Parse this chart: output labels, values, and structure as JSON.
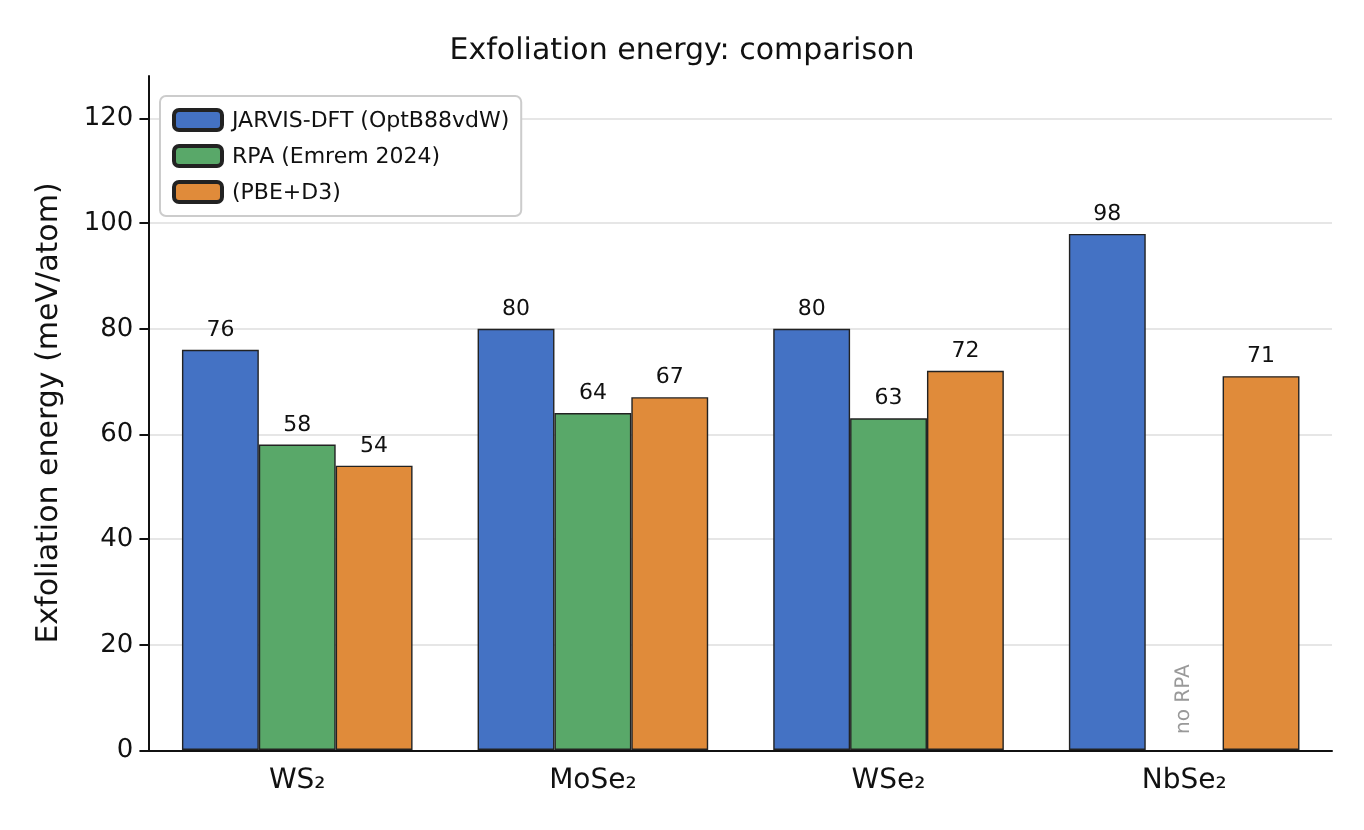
{
  "chart_data": {
    "type": "bar",
    "title": "Exfoliation energy: comparison",
    "ylabel": "Exfoliation energy (meV/atom)",
    "categories": [
      "WS₂",
      "MoSe₂",
      "WSe₂",
      "NbSe₂"
    ],
    "series": [
      {
        "name": "JARVIS-DFT (OptB88vdW)",
        "color": "#4472c4",
        "values": [
          76,
          80,
          80,
          98
        ]
      },
      {
        "name": "RPA (Emrem 2024)",
        "color": "#59a869",
        "values": [
          58,
          64,
          63,
          null
        ]
      },
      {
        "name": "(PBE+D3)",
        "color": "#e08b3a",
        "values": [
          54,
          67,
          72,
          71
        ]
      }
    ],
    "ylim": [
      0,
      128
    ],
    "yticks": [
      0,
      20,
      40,
      60,
      80,
      100,
      120
    ],
    "grid": "y",
    "legend": "top left",
    "data_labels": true,
    "annotations": [
      "no RPA"
    ]
  }
}
